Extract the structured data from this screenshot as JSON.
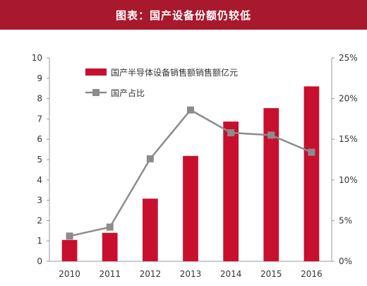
{
  "header": {
    "title": "图表：国产设备份额仍较低"
  },
  "colors": {
    "header_bg": "#a8192e",
    "bar": "#c8102e",
    "line": "#8c8c8c",
    "marker": "#8c8c8c"
  },
  "chart_data": {
    "type": "bar",
    "title": "图表：国产设备份额仍较低",
    "categories": [
      "2010",
      "2011",
      "2012",
      "2013",
      "2014",
      "2015",
      "2016"
    ],
    "series": [
      {
        "name": "国产半导体设备销售额销售额亿元",
        "type": "bar",
        "axis": "left",
        "values": [
          1.05,
          1.4,
          3.08,
          5.18,
          6.87,
          7.53,
          8.6
        ]
      },
      {
        "name": "国产占比",
        "type": "line",
        "axis": "right",
        "values": [
          3.1,
          4.2,
          12.6,
          18.6,
          15.8,
          15.5,
          13.4
        ]
      }
    ],
    "y_left": {
      "min": 0,
      "max": 10,
      "ticks": [
        "0",
        "1",
        "2",
        "3",
        "4",
        "5",
        "6",
        "7",
        "8",
        "9",
        "10"
      ]
    },
    "y_right": {
      "min": 0,
      "max": 25,
      "ticks": [
        "0%",
        "5%",
        "10%",
        "15%",
        "20%",
        "25%"
      ]
    },
    "xlabel": "",
    "ylabel": "",
    "legend": {
      "placement": "top-left",
      "entries": [
        "国产半导体设备销售额销售额亿元",
        "国产占比"
      ]
    },
    "grid": false
  }
}
